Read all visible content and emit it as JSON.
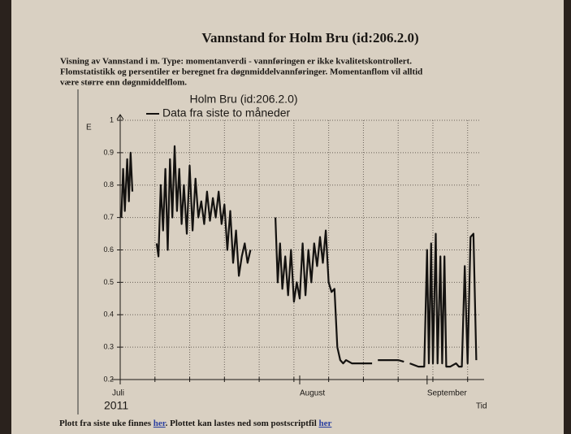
{
  "page": {
    "title": "Vannstand for Holm Bru (id:206.2.0)",
    "description": [
      "Visning av Vannstand i m. Type: momentanverdi - vannføringen er ikke kvalitetskontrollert.",
      "Flomstatistikk og persentiler er beregnet fra døgnmiddelvannføringer. Momentanflom vil alltid",
      "være større enn døgnmiddelflom."
    ]
  },
  "chart_data": {
    "type": "line",
    "title": "Holm Bru (id:206.2.0)",
    "ylabel": "E",
    "xlabel": "Tid",
    "year": "2011",
    "xlim": [
      0,
      62
    ],
    "ylim": [
      0.2,
      1
    ],
    "grid": true,
    "yticks": [
      0.2,
      0.3,
      0.4,
      0.5,
      0.6,
      0.7,
      0.8,
      0.9,
      1
    ],
    "xticks": [
      {
        "value": 0,
        "label": "Juli"
      },
      {
        "value": 31,
        "label": "August"
      },
      {
        "value": 53,
        "label": "September"
      }
    ],
    "xgrid": [
      6,
      12,
      18,
      24,
      30,
      36,
      42,
      48,
      54,
      60
    ],
    "x": [
      0.2,
      0.5,
      0.8,
      1.2,
      1.5,
      1.8,
      2.1,
      4,
      6.3,
      6.6,
      7,
      7.4,
      7.8,
      8.2,
      8.6,
      9,
      9.4,
      9.8,
      10.2,
      10.6,
      11,
      11.5,
      12,
      12.5,
      13,
      13.5,
      14,
      14.5,
      15,
      15.5,
      16,
      16.5,
      17,
      17.5,
      18,
      18.5,
      19,
      19.5,
      20,
      20.5,
      21,
      21.5,
      22,
      22.5,
      24,
      26.8,
      27.2,
      27.6,
      28,
      28.5,
      29,
      29.5,
      30,
      30.5,
      31,
      31.5,
      32,
      32.5,
      33,
      33.5,
      34,
      34.5,
      35,
      35.5,
      36,
      36.5,
      37,
      37.5,
      38,
      38.5,
      39,
      40,
      41,
      42,
      43,
      43.5,
      44,
      44.5,
      46,
      48,
      49,
      49.5,
      50,
      51.5,
      52.5,
      53,
      53.3,
      53.7,
      54,
      54.5,
      54.8,
      55.3,
      55.6,
      56,
      56.3,
      57,
      58,
      58.5,
      59,
      59.5,
      60,
      60.5,
      61,
      61.5
    ],
    "series": [
      {
        "name": "Data fra siste to måneder",
        "color": "#141210",
        "values": [
          0.7,
          0.85,
          0.72,
          0.88,
          0.75,
          0.9,
          0.78,
          null,
          0.62,
          0.58,
          0.8,
          0.66,
          0.85,
          0.6,
          0.88,
          0.7,
          0.92,
          0.72,
          0.85,
          0.68,
          0.8,
          0.65,
          0.86,
          0.66,
          0.82,
          0.7,
          0.75,
          0.68,
          0.78,
          0.69,
          0.76,
          0.7,
          0.78,
          0.68,
          0.74,
          0.6,
          0.72,
          0.56,
          0.66,
          0.52,
          0.58,
          0.62,
          0.56,
          0.6,
          null,
          0.7,
          0.5,
          0.62,
          0.48,
          0.58,
          0.46,
          0.6,
          0.44,
          0.5,
          0.45,
          0.62,
          0.46,
          0.6,
          0.5,
          0.62,
          0.55,
          0.64,
          0.56,
          0.66,
          0.5,
          0.47,
          0.48,
          0.3,
          0.26,
          0.25,
          0.26,
          0.25,
          0.25,
          0.25,
          0.25,
          0.25,
          null,
          0.26,
          0.26,
          0.26,
          0.255,
          null,
          0.25,
          0.24,
          0.24,
          0.6,
          0.25,
          0.62,
          0.25,
          0.65,
          0.25,
          0.58,
          0.25,
          0.58,
          0.24,
          0.24,
          0.25,
          0.24,
          0.24,
          0.55,
          0.25,
          0.64,
          0.65,
          0.26
        ]
      }
    ]
  },
  "footer": {
    "text1": "Plott fra siste uke finnes ",
    "link1": "her",
    "text2": ". Plottet kan lastes ned som postscriptfil ",
    "link2": "her"
  }
}
